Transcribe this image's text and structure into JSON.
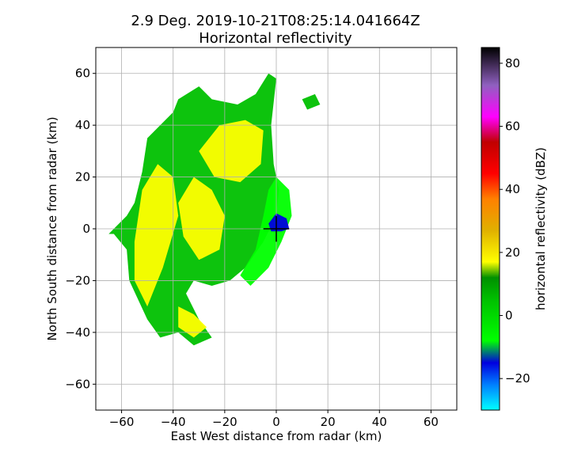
{
  "chart_data": {
    "type": "heatmap",
    "title_line1": "2.9 Deg. 2019-10-21T08:25:14.041664Z",
    "title_line2": "Horizontal reflectivity",
    "xlabel": "East West distance from radar (km)",
    "ylabel": "North South distance from radar (km)",
    "xlim": [
      -70,
      70
    ],
    "ylim": [
      -70,
      70
    ],
    "xticks": [
      -60,
      -40,
      -20,
      0,
      20,
      40,
      60
    ],
    "yticks": [
      -60,
      -40,
      -20,
      0,
      20,
      40,
      60
    ],
    "xtick_labels": [
      "−60",
      "−40",
      "−20",
      "0",
      "20",
      "40",
      "60"
    ],
    "ytick_labels": [
      "−60",
      "−40",
      "−20",
      "0",
      "20",
      "40",
      "60"
    ],
    "grid": true,
    "radar_marker": "cross at origin",
    "colorbar": {
      "label": "horizontal reflectivity (dBZ)",
      "range": [
        -30,
        85
      ],
      "ticks": [
        -20,
        0,
        20,
        40,
        60,
        80
      ],
      "tick_labels": [
        "−20",
        "0",
        "20",
        "40",
        "60",
        "80"
      ],
      "colors": [
        {
          "dbz": -30,
          "color": "#00ffff"
        },
        {
          "dbz": -22,
          "color": "#0080ff"
        },
        {
          "dbz": -15,
          "color": "#0000e0"
        },
        {
          "dbz": -8,
          "color": "#00ff00"
        },
        {
          "dbz": 5,
          "color": "#00c000"
        },
        {
          "dbz": 12,
          "color": "#009000"
        },
        {
          "dbz": 17,
          "color": "#ffff00"
        },
        {
          "dbz": 27,
          "color": "#e0b000"
        },
        {
          "dbz": 37,
          "color": "#ff8000"
        },
        {
          "dbz": 45,
          "color": "#ff0000"
        },
        {
          "dbz": 55,
          "color": "#c00000"
        },
        {
          "dbz": 63,
          "color": "#ff00ff"
        },
        {
          "dbz": 73,
          "color": "#9060c0"
        },
        {
          "dbz": 85,
          "color": "#000000"
        }
      ]
    },
    "echo_regions": [
      {
        "name": "main-band",
        "dbz": 10,
        "points": [
          [
            -65,
            -2
          ],
          [
            -58,
            5
          ],
          [
            -55,
            10
          ],
          [
            -52,
            22
          ],
          [
            -50,
            35
          ],
          [
            -45,
            40
          ],
          [
            -40,
            45
          ],
          [
            -38,
            50
          ],
          [
            -30,
            55
          ],
          [
            -25,
            50
          ],
          [
            -15,
            48
          ],
          [
            -8,
            52
          ],
          [
            -3,
            60
          ],
          [
            0,
            58
          ],
          [
            -2,
            40
          ],
          [
            -1,
            25
          ],
          [
            1,
            15
          ],
          [
            0,
            5
          ],
          [
            -5,
            -5
          ],
          [
            -12,
            -15
          ],
          [
            -18,
            -20
          ],
          [
            -25,
            -22
          ],
          [
            -32,
            -20
          ],
          [
            -35,
            -25
          ],
          [
            -30,
            -35
          ],
          [
            -25,
            -42
          ],
          [
            -32,
            -45
          ],
          [
            -38,
            -40
          ],
          [
            -45,
            -42
          ],
          [
            -50,
            -35
          ],
          [
            -57,
            -20
          ],
          [
            -58,
            -8
          ],
          [
            -63,
            -2
          ]
        ]
      },
      {
        "name": "radial-wedge",
        "dbz": 0,
        "points": [
          [
            0,
            20
          ],
          [
            5,
            15
          ],
          [
            6,
            5
          ],
          [
            2,
            -5
          ],
          [
            -3,
            -15
          ],
          [
            -10,
            -22
          ],
          [
            -14,
            -18
          ],
          [
            -8,
            -8
          ],
          [
            -5,
            5
          ],
          [
            -3,
            15
          ]
        ]
      },
      {
        "name": "yellow-core-north",
        "dbz": 20,
        "points": [
          [
            -30,
            30
          ],
          [
            -22,
            40
          ],
          [
            -12,
            42
          ],
          [
            -5,
            38
          ],
          [
            -6,
            25
          ],
          [
            -14,
            18
          ],
          [
            -24,
            20
          ]
        ]
      },
      {
        "name": "yellow-core-west",
        "dbz": 22,
        "points": [
          [
            -55,
            -5
          ],
          [
            -52,
            15
          ],
          [
            -46,
            25
          ],
          [
            -40,
            20
          ],
          [
            -38,
            5
          ],
          [
            -44,
            -15
          ],
          [
            -50,
            -30
          ],
          [
            -55,
            -20
          ]
        ]
      },
      {
        "name": "yellow-core-mid",
        "dbz": 19,
        "points": [
          [
            -38,
            10
          ],
          [
            -32,
            20
          ],
          [
            -25,
            15
          ],
          [
            -20,
            5
          ],
          [
            -22,
            -8
          ],
          [
            -30,
            -12
          ],
          [
            -36,
            -3
          ]
        ]
      },
      {
        "name": "yellow-core-south",
        "dbz": 20,
        "points": [
          [
            -38,
            -30
          ],
          [
            -32,
            -33
          ],
          [
            -27,
            -38
          ],
          [
            -32,
            -42
          ],
          [
            -38,
            -38
          ]
        ]
      },
      {
        "name": "near-radar-echo",
        "dbz": -15,
        "points": [
          [
            -3,
            2
          ],
          [
            0,
            6
          ],
          [
            4,
            4
          ],
          [
            5,
            0
          ],
          [
            2,
            -1
          ],
          [
            -2,
            -1
          ]
        ]
      },
      {
        "name": "east-fragments",
        "dbz": 8,
        "points": [
          [
            10,
            50
          ],
          [
            15,
            52
          ],
          [
            17,
            48
          ],
          [
            12,
            46
          ]
        ]
      }
    ]
  }
}
